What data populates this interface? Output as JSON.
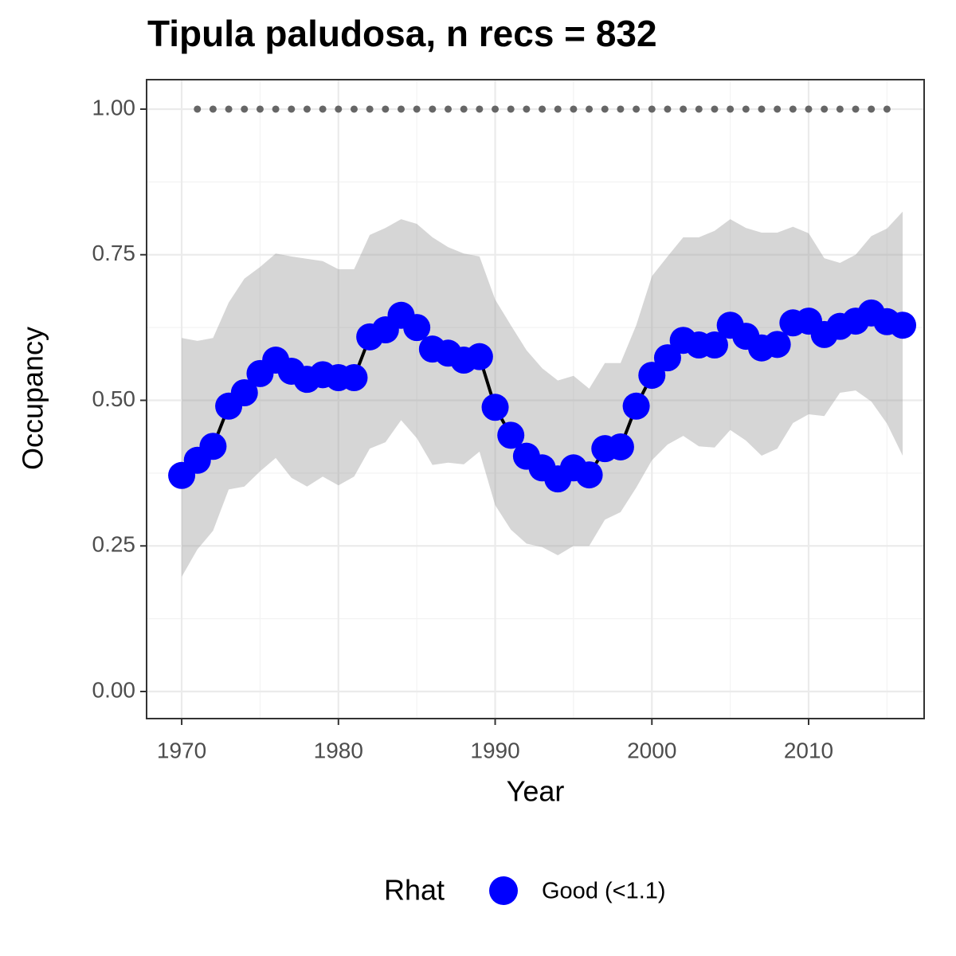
{
  "chart_data": {
    "type": "line",
    "title": "Tipula paludosa, n recs = 832",
    "x_label": "Year",
    "y_label": "Occupancy",
    "legend_title": "Rhat",
    "x": [
      1970,
      1971,
      1972,
      1973,
      1974,
      1975,
      1976,
      1977,
      1978,
      1979,
      1980,
      1981,
      1982,
      1983,
      1984,
      1985,
      1986,
      1987,
      1988,
      1989,
      1990,
      1991,
      1992,
      1993,
      1994,
      1995,
      1996,
      1997,
      1998,
      1999,
      2000,
      2001,
      2002,
      2003,
      2004,
      2005,
      2006,
      2007,
      2008,
      2009,
      2010,
      2011,
      2012,
      2013,
      2014,
      2015,
      2016
    ],
    "series": [
      {
        "name": "Good (<1.1)",
        "color": "#0000ff",
        "line_color": "#000000",
        "ribbon_color": "#999999",
        "values": [
          0.371,
          0.397,
          0.421,
          0.49,
          0.513,
          0.546,
          0.569,
          0.55,
          0.536,
          0.544,
          0.539,
          0.539,
          0.609,
          0.621,
          0.646,
          0.625,
          0.588,
          0.581,
          0.569,
          0.575,
          0.488,
          0.44,
          0.404,
          0.384,
          0.365,
          0.384,
          0.372,
          0.417,
          0.42,
          0.49,
          0.543,
          0.573,
          0.603,
          0.595,
          0.595,
          0.629,
          0.61,
          0.59,
          0.596,
          0.633,
          0.636,
          0.613,
          0.627,
          0.636,
          0.65,
          0.635,
          0.629
        ],
        "upper": [
          0.607,
          0.602,
          0.607,
          0.668,
          0.709,
          0.729,
          0.752,
          0.747,
          0.743,
          0.739,
          0.725,
          0.725,
          0.784,
          0.796,
          0.811,
          0.803,
          0.78,
          0.763,
          0.752,
          0.747,
          0.673,
          0.629,
          0.586,
          0.555,
          0.534,
          0.542,
          0.52,
          0.564,
          0.564,
          0.629,
          0.713,
          0.747,
          0.78,
          0.78,
          0.791,
          0.811,
          0.796,
          0.788,
          0.788,
          0.798,
          0.787,
          0.744,
          0.736,
          0.75,
          0.782,
          0.795,
          0.824
        ],
        "lower": [
          0.197,
          0.244,
          0.276,
          0.347,
          0.352,
          0.378,
          0.401,
          0.367,
          0.352,
          0.369,
          0.354,
          0.369,
          0.417,
          0.428,
          0.466,
          0.435,
          0.389,
          0.393,
          0.39,
          0.412,
          0.32,
          0.278,
          0.254,
          0.248,
          0.234,
          0.25,
          0.25,
          0.295,
          0.308,
          0.35,
          0.397,
          0.424,
          0.439,
          0.421,
          0.419,
          0.449,
          0.431,
          0.405,
          0.417,
          0.461,
          0.476,
          0.473,
          0.513,
          0.517,
          0.498,
          0.46,
          0.405
        ]
      }
    ],
    "dots": {
      "color": "#666666",
      "x": [
        1971,
        1972,
        1973,
        1974,
        1975,
        1976,
        1977,
        1978,
        1979,
        1980,
        1981,
        1982,
        1983,
        1984,
        1985,
        1986,
        1987,
        1988,
        1989,
        1990,
        1991,
        1992,
        1993,
        1994,
        1995,
        1996,
        1997,
        1998,
        1999,
        2000,
        2001,
        2002,
        2003,
        2004,
        2005,
        2006,
        2007,
        2008,
        2009,
        2010,
        2011,
        2012,
        2013,
        2014,
        2015
      ],
      "values": [
        1,
        1,
        1,
        1,
        1,
        1,
        1,
        1,
        1,
        1,
        1,
        1,
        1,
        1,
        1,
        1,
        1,
        1,
        1,
        1,
        1,
        1,
        1,
        1,
        1,
        1,
        1,
        1,
        1,
        1,
        1,
        1,
        1,
        1,
        1,
        1,
        1,
        1,
        1,
        1,
        1,
        1,
        1,
        1,
        1
      ]
    },
    "xlim": [
      1967.76,
      2017.37
    ],
    "xticks": [
      1970,
      1980,
      1990,
      2000,
      2010
    ],
    "ylim": [
      -0.0465,
      1.0506
    ],
    "yticks": [
      {
        "value": 0,
        "label": "0.00"
      },
      {
        "value": 0.25,
        "label": "0.25"
      },
      {
        "value": 0.5,
        "label": "0.50"
      },
      {
        "value": 0.75,
        "label": "0.75"
      },
      {
        "value": 1,
        "label": "1.00"
      }
    ],
    "grid": true,
    "legend_position": "bottom"
  }
}
